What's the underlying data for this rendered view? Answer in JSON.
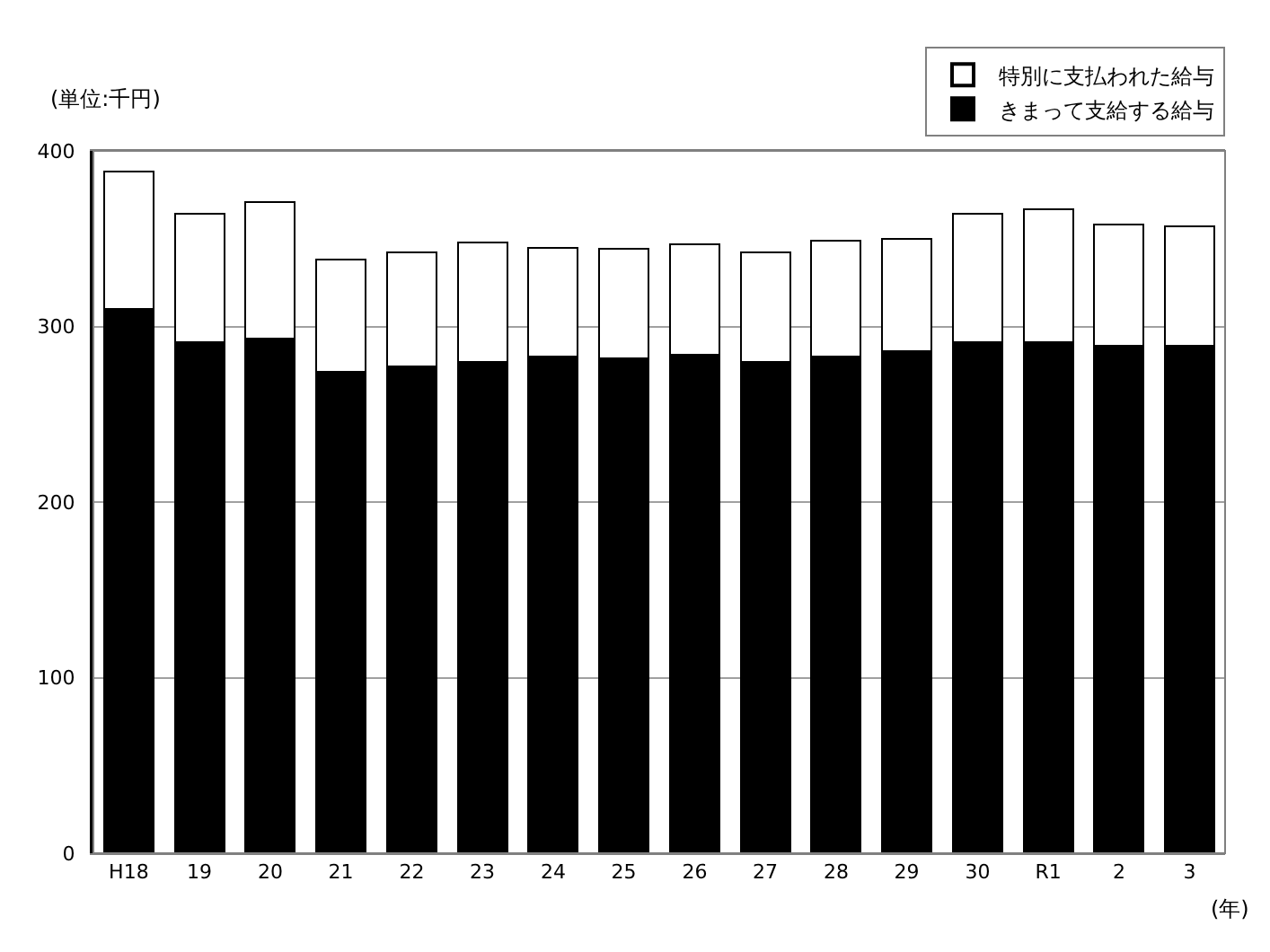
{
  "chart_data": {
    "type": "bar",
    "stacked": true,
    "categories": [
      "H18",
      "19",
      "20",
      "21",
      "22",
      "23",
      "24",
      "25",
      "26",
      "27",
      "28",
      "29",
      "30",
      "R1",
      "2",
      "3"
    ],
    "series": [
      {
        "name": "きまって支給する給与",
        "color": "#000000",
        "values": [
          310,
          291,
          293,
          274,
          277,
          280,
          283,
          282,
          284,
          280,
          283,
          286,
          291,
          291,
          289,
          289
        ]
      },
      {
        "name": "特別に支払われた給与",
        "color": "#ffffff",
        "values": [
          78,
          73,
          78,
          64,
          65,
          68,
          62,
          62,
          63,
          62,
          66,
          64,
          73,
          76,
          69,
          68
        ]
      }
    ],
    "ylabel": "(単位:千円)",
    "xlabel": "(年)",
    "ylim": [
      0,
      400
    ],
    "yticks": [
      0,
      100,
      200,
      300,
      400
    ],
    "grid": "y",
    "legend": "top right"
  }
}
